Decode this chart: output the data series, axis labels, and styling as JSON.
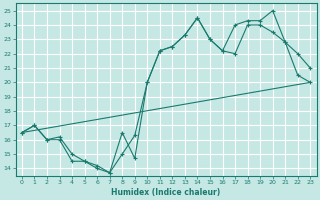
{
  "xlabel": "Humidex (Indice chaleur)",
  "bg_color": "#c5e8e5",
  "grid_color": "#b0d8d4",
  "line_color": "#1a7a6e",
  "xlim": [
    -0.5,
    23.5
  ],
  "ylim": [
    13.5,
    25.5
  ],
  "xticks": [
    0,
    1,
    2,
    3,
    4,
    5,
    6,
    7,
    8,
    9,
    10,
    11,
    12,
    13,
    14,
    15,
    16,
    17,
    18,
    19,
    20,
    21,
    22,
    23
  ],
  "yticks": [
    14,
    15,
    16,
    17,
    18,
    19,
    20,
    21,
    22,
    23,
    24,
    25
  ],
  "line1_x": [
    0,
    1,
    2,
    3,
    4,
    5,
    6,
    7,
    8,
    9,
    10,
    11,
    12,
    13,
    14,
    15,
    16,
    17,
    18,
    19,
    20,
    21,
    22,
    23
  ],
  "line1_y": [
    16.5,
    17.0,
    16.0,
    16.2,
    15.0,
    14.5,
    14.2,
    13.7,
    15.0,
    16.3,
    20.0,
    22.2,
    22.5,
    23.3,
    24.5,
    23.0,
    22.2,
    24.0,
    24.3,
    24.3,
    25.0,
    22.8,
    20.5,
    20.0
  ],
  "line2_x": [
    0,
    1,
    2,
    3,
    4,
    5,
    6,
    7,
    8,
    9,
    10,
    11,
    12,
    13,
    14,
    15,
    16,
    17,
    18,
    19,
    20,
    21,
    22,
    23
  ],
  "line2_y": [
    16.5,
    17.0,
    16.0,
    16.0,
    14.5,
    14.5,
    14.0,
    13.7,
    16.5,
    14.7,
    20.0,
    22.2,
    22.5,
    23.3,
    24.5,
    23.0,
    22.2,
    22.0,
    24.0,
    24.0,
    23.5,
    22.8,
    22.0,
    21.0
  ],
  "line3_x": [
    0,
    23
  ],
  "line3_y": [
    16.5,
    20.0
  ]
}
